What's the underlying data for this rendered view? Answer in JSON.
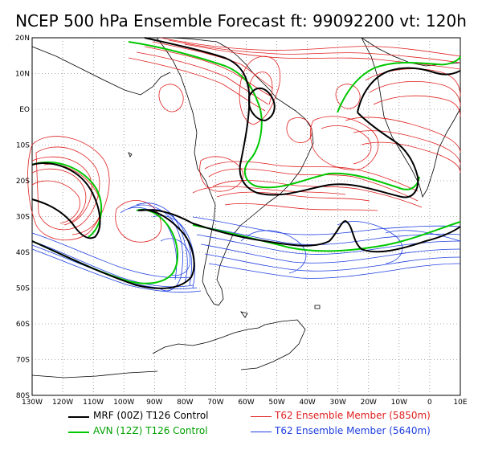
{
  "title": "NCEP 500 hPa Ensemble Forecast  ft: 99092200 vt: 120h",
  "lat_labels": [
    "20N",
    "10N",
    "EO",
    "10S",
    "20S",
    "30S",
    "40S",
    "50S",
    "60S",
    "70S",
    "80S"
  ],
  "lon_labels": [
    "130W",
    "120W",
    "110W",
    "100W",
    "90W",
    "80W",
    "70W",
    "60W",
    "50W",
    "40W",
    "30W",
    "20W",
    "10W",
    "0",
    "10E"
  ],
  "legend": [
    {
      "label": "MRF (00Z) T126 Control",
      "color": "#000000",
      "text_color": "#000000"
    },
    {
      "label": "AVN (12Z) T126 Control",
      "color": "#00c800",
      "text_color": "#00a000"
    },
    {
      "label": "T62 Ensemble Member (5850m)",
      "color": "#e02020",
      "text_color": "#e02020"
    },
    {
      "label": "T62 Ensemble Member (5640m)",
      "color": "#2040e0",
      "text_color": "#2040e0"
    }
  ]
}
